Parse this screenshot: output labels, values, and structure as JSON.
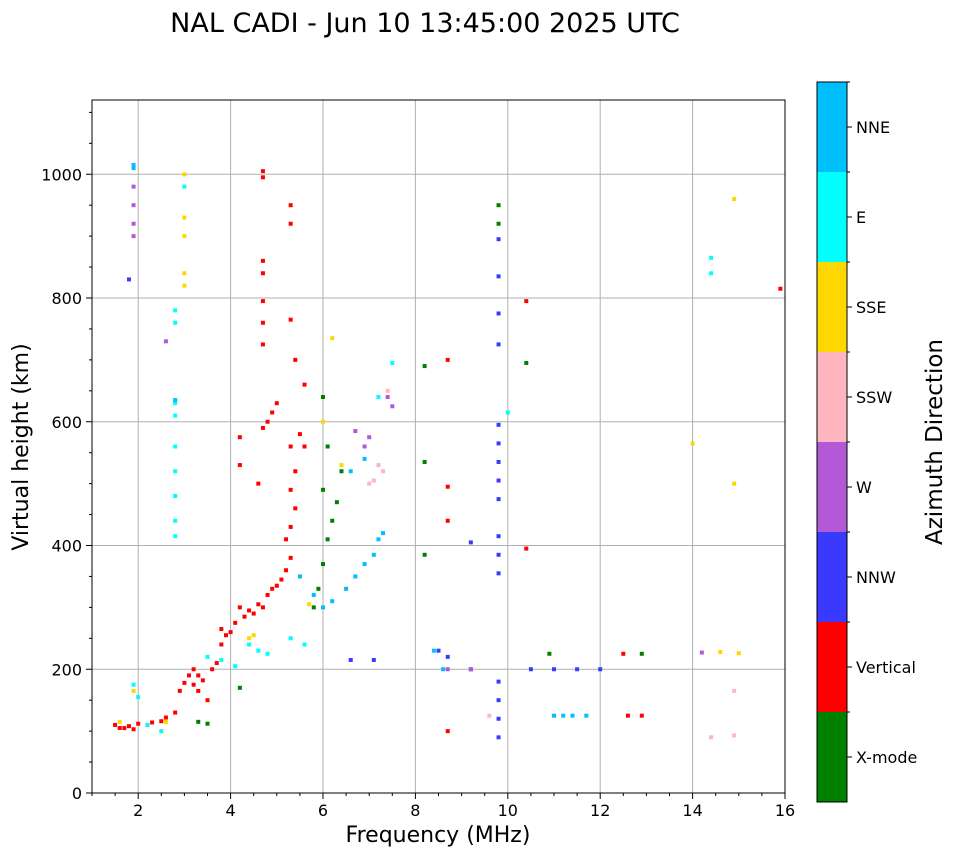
{
  "chart_data": {
    "type": "scatter",
    "title": "NAL CADI - Jun 10 13:45:00 2025 UTC",
    "xlabel": "Frequency (MHz)",
    "ylabel": "Virtual height (km)",
    "xlim": [
      1,
      16
    ],
    "ylim": [
      0,
      1120
    ],
    "xticks": [
      2,
      4,
      6,
      8,
      10,
      12,
      14,
      16
    ],
    "yticks": [
      0,
      200,
      400,
      600,
      800,
      1000
    ],
    "grid": true,
    "colorbar": {
      "label": "Azimuth Direction",
      "categories": [
        {
          "name": "X-mode",
          "color": "#008000"
        },
        {
          "name": "Vertical",
          "color": "#ff0000"
        },
        {
          "name": "NNW",
          "color": "#3a3aff"
        },
        {
          "name": "W",
          "color": "#b358d6"
        },
        {
          "name": "SSW",
          "color": "#ffb6c1"
        },
        {
          "name": "SSE",
          "color": "#ffd700"
        },
        {
          "name": "E",
          "color": "#00ffff"
        },
        {
          "name": "NNE",
          "color": "#00bfff"
        }
      ]
    },
    "series": [
      {
        "name": "Vertical",
        "points": [
          [
            1.5,
            110
          ],
          [
            1.6,
            105
          ],
          [
            1.7,
            105
          ],
          [
            1.8,
            108
          ],
          [
            1.9,
            103
          ],
          [
            2.0,
            112
          ],
          [
            2.2,
            110
          ],
          [
            2.3,
            114
          ],
          [
            2.5,
            116
          ],
          [
            2.6,
            122
          ],
          [
            2.8,
            130
          ],
          [
            2.9,
            165
          ],
          [
            3.0,
            178
          ],
          [
            3.1,
            190
          ],
          [
            3.2,
            175
          ],
          [
            3.3,
            165
          ],
          [
            3.4,
            182
          ],
          [
            3.5,
            150
          ],
          [
            3.3,
            190
          ],
          [
            3.2,
            200
          ],
          [
            3.6,
            200
          ],
          [
            3.7,
            210
          ],
          [
            3.8,
            240
          ],
          [
            3.9,
            255
          ],
          [
            4.0,
            260
          ],
          [
            4.1,
            275
          ],
          [
            3.8,
            265
          ],
          [
            4.2,
            300
          ],
          [
            4.3,
            285
          ],
          [
            4.4,
            295
          ],
          [
            4.5,
            290
          ],
          [
            4.6,
            305
          ],
          [
            4.7,
            300
          ],
          [
            4.8,
            320
          ],
          [
            4.9,
            330
          ],
          [
            5.0,
            335
          ],
          [
            5.1,
            345
          ],
          [
            5.2,
            360
          ],
          [
            5.3,
            380
          ],
          [
            5.2,
            410
          ],
          [
            5.3,
            430
          ],
          [
            5.4,
            460
          ],
          [
            5.3,
            490
          ],
          [
            5.4,
            520
          ],
          [
            5.3,
            560
          ],
          [
            5.5,
            580
          ],
          [
            5.6,
            560
          ],
          [
            4.7,
            590
          ],
          [
            4.8,
            600
          ],
          [
            4.9,
            615
          ],
          [
            5.0,
            630
          ],
          [
            4.6,
            500
          ],
          [
            4.2,
            530
          ],
          [
            4.2,
            575
          ],
          [
            4.7,
            725
          ],
          [
            4.7,
            760
          ],
          [
            4.7,
            795
          ],
          [
            4.7,
            840
          ],
          [
            4.7,
            860
          ],
          [
            4.7,
            995
          ],
          [
            4.7,
            1005
          ],
          [
            5.3,
            950
          ],
          [
            5.3,
            920
          ],
          [
            5.3,
            765
          ],
          [
            5.4,
            700
          ],
          [
            5.6,
            660
          ],
          [
            8.7,
            700
          ],
          [
            8.7,
            495
          ],
          [
            8.7,
            440
          ],
          [
            8.7,
            100
          ],
          [
            10.4,
            795
          ],
          [
            10.4,
            395
          ],
          [
            12.5,
            225
          ],
          [
            12.9,
            125
          ],
          [
            12.6,
            125
          ],
          [
            15.9,
            815
          ]
        ]
      },
      {
        "name": "X-mode",
        "points": [
          [
            3.3,
            115
          ],
          [
            3.5,
            112
          ],
          [
            4.2,
            170
          ],
          [
            5.8,
            300
          ],
          [
            5.9,
            330
          ],
          [
            6.0,
            370
          ],
          [
            6.1,
            410
          ],
          [
            6.2,
            440
          ],
          [
            6.3,
            470
          ],
          [
            6.0,
            490
          ],
          [
            6.4,
            520
          ],
          [
            6.1,
            560
          ],
          [
            6.0,
            640
          ],
          [
            8.2,
            690
          ],
          [
            8.2,
            535
          ],
          [
            8.2,
            385
          ],
          [
            9.8,
            950
          ],
          [
            9.8,
            920
          ],
          [
            10.4,
            695
          ],
          [
            10.9,
            225
          ],
          [
            12.9,
            225
          ]
        ]
      },
      {
        "name": "NNW",
        "points": [
          [
            1.8,
            830
          ],
          [
            6.6,
            215
          ],
          [
            7.1,
            215
          ],
          [
            8.5,
            230
          ],
          [
            8.7,
            220
          ],
          [
            9.2,
            200
          ],
          [
            9.8,
            895
          ],
          [
            9.8,
            835
          ],
          [
            9.8,
            775
          ],
          [
            9.8,
            725
          ],
          [
            9.8,
            595
          ],
          [
            9.8,
            565
          ],
          [
            9.8,
            535
          ],
          [
            9.8,
            505
          ],
          [
            9.8,
            475
          ],
          [
            9.8,
            415
          ],
          [
            9.8,
            385
          ],
          [
            9.8,
            355
          ],
          [
            9.8,
            180
          ],
          [
            9.8,
            150
          ],
          [
            9.8,
            120
          ],
          [
            9.8,
            90
          ],
          [
            9.2,
            405
          ],
          [
            10.5,
            200
          ],
          [
            11.0,
            200
          ],
          [
            11.5,
            200
          ],
          [
            12.0,
            200
          ]
        ]
      },
      {
        "name": "W",
        "points": [
          [
            1.9,
            980
          ],
          [
            1.9,
            950
          ],
          [
            1.9,
            920
          ],
          [
            1.9,
            900
          ],
          [
            2.6,
            730
          ],
          [
            6.7,
            585
          ],
          [
            6.9,
            560
          ],
          [
            7.0,
            575
          ],
          [
            7.4,
            640
          ],
          [
            7.5,
            625
          ],
          [
            8.7,
            200
          ],
          [
            9.2,
            200
          ],
          [
            14.2,
            227
          ]
        ]
      },
      {
        "name": "SSW",
        "points": [
          [
            7.2,
            530
          ],
          [
            7.3,
            520
          ],
          [
            7.1,
            505
          ],
          [
            7.0,
            500
          ],
          [
            7.4,
            650
          ],
          [
            9.6,
            125
          ],
          [
            14.4,
            90
          ],
          [
            14.9,
            93
          ],
          [
            14.9,
            165
          ]
        ]
      },
      {
        "name": "SSE",
        "points": [
          [
            1.6,
            115
          ],
          [
            1.9,
            165
          ],
          [
            3.0,
            1000
          ],
          [
            3.0,
            930
          ],
          [
            3.0,
            900
          ],
          [
            3.0,
            840
          ],
          [
            3.0,
            820
          ],
          [
            6.2,
            735
          ],
          [
            6.0,
            600
          ],
          [
            6.4,
            530
          ],
          [
            6.5,
            330
          ],
          [
            5.7,
            305
          ],
          [
            4.4,
            250
          ],
          [
            4.5,
            255
          ],
          [
            2.6,
            115
          ],
          [
            14.0,
            565
          ],
          [
            14.9,
            960
          ],
          [
            14.9,
            500
          ],
          [
            14.6,
            228
          ],
          [
            15.0,
            226
          ]
        ]
      },
      {
        "name": "E",
        "points": [
          [
            1.9,
            175
          ],
          [
            2.0,
            155
          ],
          [
            2.2,
            110
          ],
          [
            2.5,
            100
          ],
          [
            2.8,
            780
          ],
          [
            2.8,
            760
          ],
          [
            2.8,
            630
          ],
          [
            2.8,
            610
          ],
          [
            2.8,
            560
          ],
          [
            2.8,
            520
          ],
          [
            2.8,
            480
          ],
          [
            2.8,
            440
          ],
          [
            2.8,
            415
          ],
          [
            3.0,
            980
          ],
          [
            3.5,
            220
          ],
          [
            3.8,
            215
          ],
          [
            4.1,
            205
          ],
          [
            4.4,
            240
          ],
          [
            4.6,
            230
          ],
          [
            4.8,
            225
          ],
          [
            5.3,
            250
          ],
          [
            5.6,
            240
          ],
          [
            7.5,
            695
          ],
          [
            7.2,
            640
          ],
          [
            10.0,
            615
          ],
          [
            14.4,
            865
          ],
          [
            14.4,
            840
          ]
        ]
      },
      {
        "name": "NNE",
        "points": [
          [
            1.9,
            1010
          ],
          [
            1.9,
            1015
          ],
          [
            2.8,
            635
          ],
          [
            5.5,
            350
          ],
          [
            5.8,
            320
          ],
          [
            6.0,
            300
          ],
          [
            6.2,
            310
          ],
          [
            6.5,
            330
          ],
          [
            6.7,
            350
          ],
          [
            6.9,
            370
          ],
          [
            7.1,
            385
          ],
          [
            7.3,
            420
          ],
          [
            6.6,
            520
          ],
          [
            6.9,
            540
          ],
          [
            7.2,
            410
          ],
          [
            8.4,
            230
          ],
          [
            8.6,
            200
          ],
          [
            11.0,
            125
          ],
          [
            11.4,
            125
          ],
          [
            11.7,
            125
          ],
          [
            11.2,
            125
          ]
        ]
      }
    ]
  }
}
